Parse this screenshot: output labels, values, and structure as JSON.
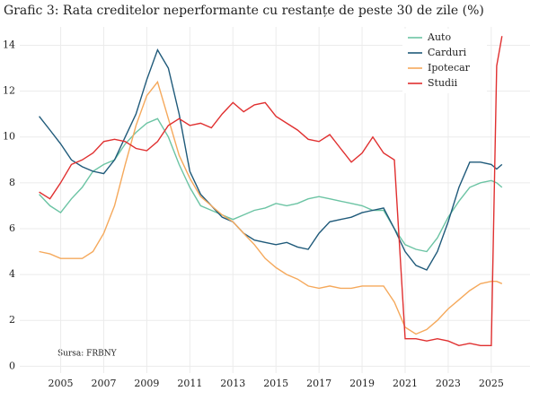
{
  "chart_data": {
    "type": "line",
    "title": "Grafic 3: Rata creditelor neperformante cu restanțe de peste 30 de zile (%)",
    "annotation": "Sursa: FRBNY",
    "x": [
      2004,
      2004.5,
      2005,
      2005.5,
      2006,
      2006.5,
      2007,
      2007.5,
      2008,
      2008.5,
      2009,
      2009.5,
      2010,
      2010.5,
      2011,
      2011.5,
      2012,
      2012.5,
      2013,
      2013.5,
      2014,
      2014.5,
      2015,
      2015.5,
      2016,
      2016.5,
      2017,
      2017.5,
      2018,
      2018.5,
      2019,
      2019.5,
      2020,
      2020.5,
      2021,
      2021.5,
      2022,
      2022.5,
      2023,
      2023.5,
      2024,
      2024.5,
      2025,
      2025.25,
      2025.5
    ],
    "series": [
      {
        "name": "Auto",
        "color": "#6cc4a4",
        "values": [
          7.5,
          7.0,
          6.7,
          7.3,
          7.8,
          8.5,
          8.8,
          9.0,
          9.7,
          10.2,
          10.6,
          10.8,
          10.0,
          8.8,
          7.8,
          7.0,
          6.8,
          6.6,
          6.4,
          6.6,
          6.8,
          6.9,
          7.1,
          7.0,
          7.1,
          7.3,
          7.4,
          7.3,
          7.2,
          7.1,
          7.0,
          6.8,
          6.8,
          6.0,
          5.3,
          5.1,
          5.0,
          5.6,
          6.5,
          7.2,
          7.8,
          8.0,
          8.1,
          8.0,
          7.8
        ]
      },
      {
        "name": "Carduri",
        "color": "#1f5a7a",
        "values": [
          10.9,
          10.3,
          9.7,
          9.0,
          8.7,
          8.5,
          8.4,
          9.0,
          10.0,
          11.0,
          12.5,
          13.8,
          13.0,
          11.0,
          8.5,
          7.5,
          7.0,
          6.5,
          6.3,
          5.8,
          5.5,
          5.4,
          5.3,
          5.4,
          5.2,
          5.1,
          5.8,
          6.3,
          6.4,
          6.5,
          6.7,
          6.8,
          6.9,
          6.0,
          5.0,
          4.4,
          4.2,
          5.0,
          6.3,
          7.8,
          8.9,
          8.9,
          8.8,
          8.6,
          8.8
        ]
      },
      {
        "name": "Ipotecar",
        "color": "#f5a95c",
        "values": [
          5.0,
          4.9,
          4.7,
          4.7,
          4.7,
          5.0,
          5.8,
          7.0,
          8.8,
          10.5,
          11.8,
          12.4,
          10.8,
          9.2,
          8.2,
          7.4,
          7.0,
          6.6,
          6.3,
          5.8,
          5.3,
          4.7,
          4.3,
          4.0,
          3.8,
          3.5,
          3.4,
          3.5,
          3.4,
          3.4,
          3.5,
          3.5,
          3.5,
          2.8,
          1.7,
          1.4,
          1.6,
          2.0,
          2.5,
          2.9,
          3.3,
          3.6,
          3.7,
          3.7,
          3.6
        ]
      },
      {
        "name": "Studii",
        "color": "#e03030",
        "values": [
          7.6,
          7.3,
          8.0,
          8.8,
          9.0,
          9.3,
          9.8,
          9.9,
          9.8,
          9.5,
          9.4,
          9.8,
          10.5,
          10.8,
          10.5,
          10.6,
          10.4,
          11.0,
          11.5,
          11.1,
          11.4,
          11.5,
          10.9,
          10.6,
          10.3,
          9.9,
          9.8,
          10.1,
          9.5,
          8.9,
          9.3,
          10.0,
          9.3,
          9.0,
          1.2,
          1.2,
          1.1,
          1.2,
          1.1,
          0.9,
          1.0,
          0.9,
          0.9,
          13.1,
          14.4
        ]
      }
    ],
    "xlim": [
      2003.1,
      2026.8
    ],
    "ylim": [
      -0.3,
      14.8
    ],
    "xticks": [
      2005,
      2007,
      2009,
      2011,
      2013,
      2015,
      2017,
      2019,
      2021,
      2023,
      2025
    ],
    "yticks": [
      0,
      2,
      4,
      6,
      8,
      10,
      12,
      14
    ],
    "grid": true,
    "legend": "top-right"
  }
}
